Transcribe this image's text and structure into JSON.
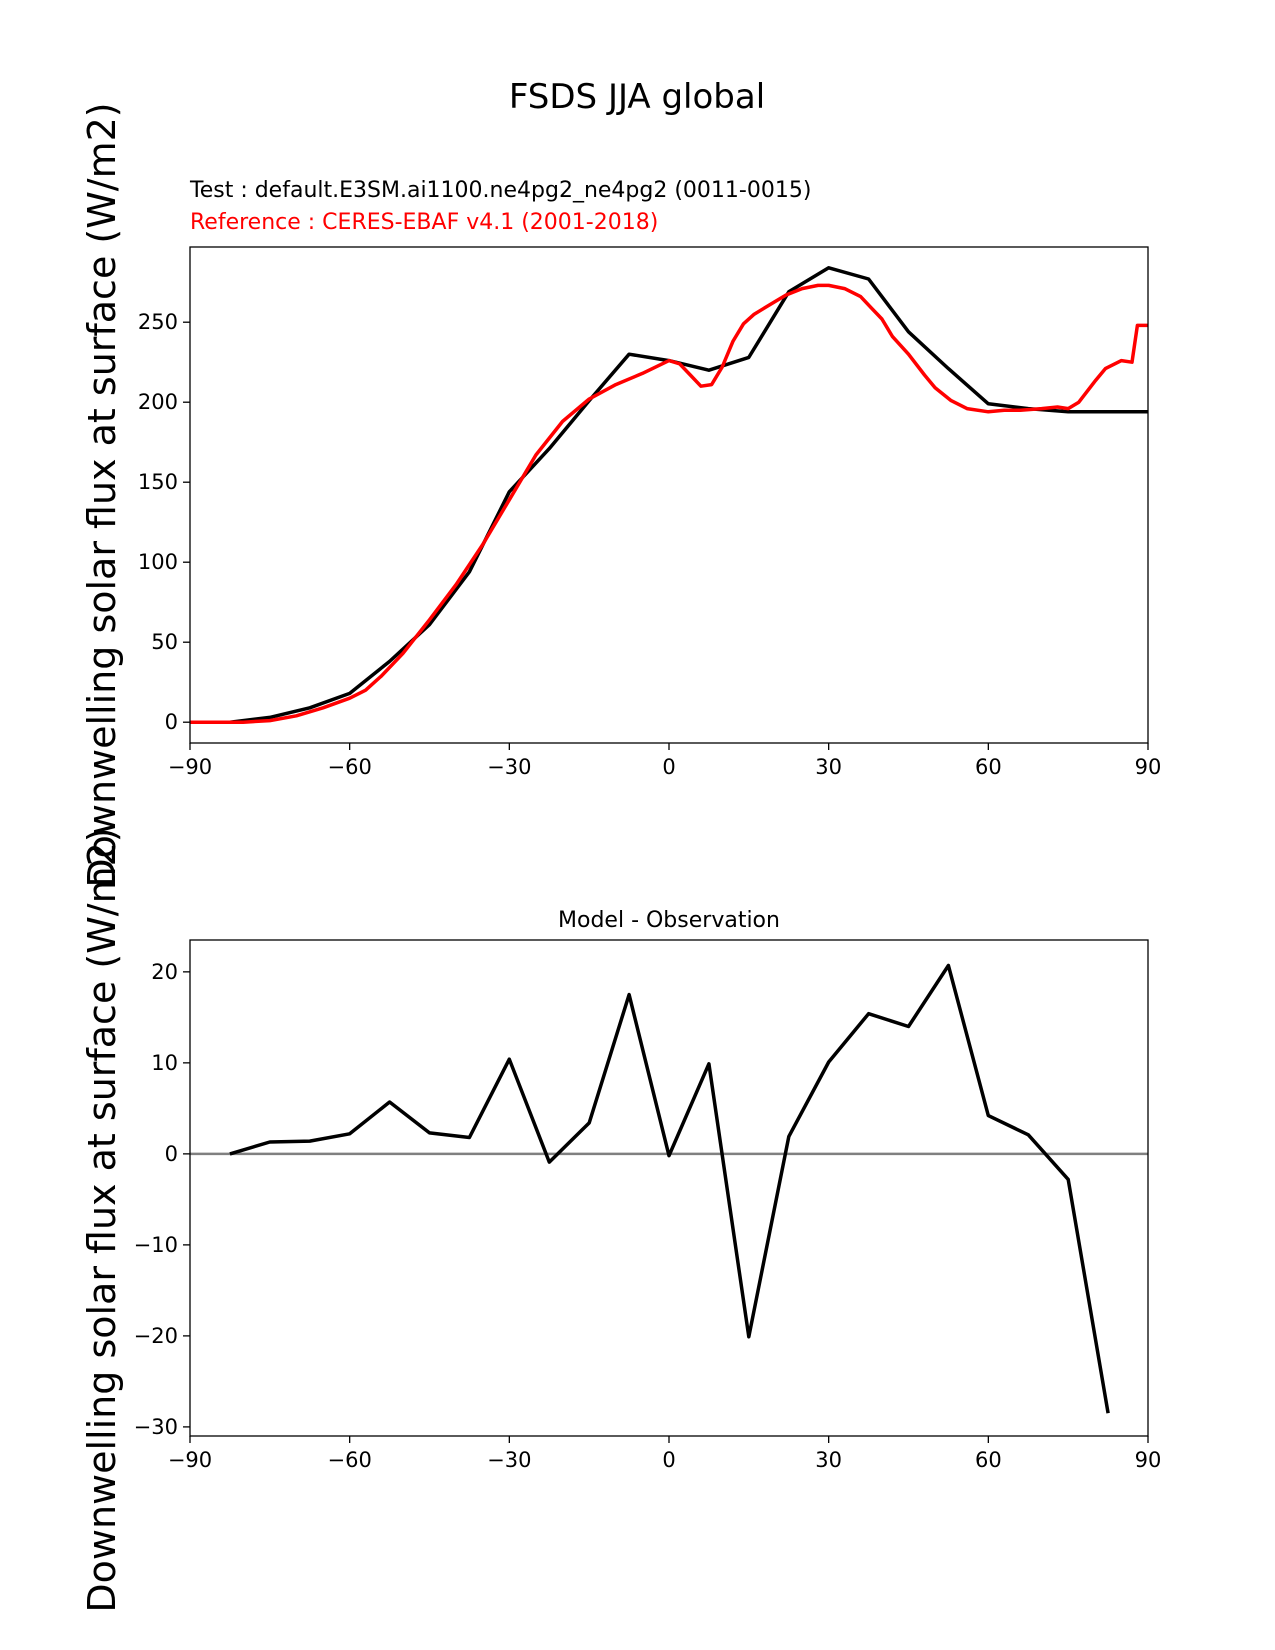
{
  "figure": {
    "title": "FSDS JJA global"
  },
  "colors": {
    "test": "#000000",
    "reference": "#ff0000",
    "zero_line": "#808080"
  },
  "chart_data": [
    {
      "type": "line",
      "name": "upper",
      "test_label": "Test : default.E3SM.ai1100.ne4pg2_ne4pg2 (0011-0015)",
      "reference_label": "Reference : CERES-EBAF v4.1 (2001-2018)",
      "ylabel": "Downwelling solar flux at surface (W/m2)",
      "xlim": [
        -90,
        90
      ],
      "ylim": [
        -13,
        297
      ],
      "xticks": [
        -90,
        -60,
        -30,
        0,
        30,
        60,
        90
      ],
      "yticks": [
        0,
        50,
        100,
        150,
        200,
        250
      ],
      "xtick_labels": [
        "−90",
        "−60",
        "−30",
        "0",
        "30",
        "60",
        "90"
      ],
      "ytick_labels": [
        "0",
        "50",
        "100",
        "150",
        "200",
        "250"
      ],
      "series": [
        {
          "role": "test",
          "x": [
            -90,
            -82.5,
            -75,
            -67.5,
            -60,
            -52.5,
            -45,
            -37.5,
            -30,
            -22.5,
            -15,
            -7.5,
            0,
            7.5,
            15,
            22.5,
            30,
            37.5,
            45,
            52.5,
            60,
            67.5,
            75,
            82.5,
            90
          ],
          "y": [
            0,
            0,
            3,
            9,
            18,
            38,
            61,
            94,
            144,
            171,
            201,
            230,
            226,
            220,
            228,
            269,
            284,
            277,
            244,
            221,
            199,
            196,
            194,
            194,
            194
          ]
        },
        {
          "role": "reference",
          "x": [
            -90,
            -85,
            -80,
            -75,
            -70,
            -65,
            -60,
            -57,
            -54,
            -50,
            -45,
            -40,
            -35,
            -30,
            -25,
            -20,
            -15,
            -10,
            -5,
            0,
            2,
            4,
            6,
            8,
            10,
            12,
            14,
            16,
            18,
            20,
            22,
            25,
            28,
            30,
            33,
            36,
            38,
            40,
            42,
            45,
            48,
            50,
            53,
            56,
            60,
            63,
            66,
            70,
            73,
            75,
            77,
            80,
            82,
            85,
            87,
            88,
            90
          ],
          "y": [
            0,
            0,
            0,
            1,
            4,
            9,
            15,
            20,
            29,
            43,
            64,
            86,
            111,
            139,
            167,
            188,
            202,
            211,
            218,
            226,
            224,
            217,
            210,
            211,
            222,
            238,
            249,
            255,
            259,
            263,
            267,
            271,
            273,
            273,
            271,
            266,
            259,
            252,
            241,
            230,
            217,
            209,
            201,
            196,
            194,
            195,
            195,
            196,
            197,
            196,
            200,
            213,
            221,
            226,
            225,
            248,
            248
          ]
        }
      ]
    },
    {
      "type": "line",
      "name": "lower",
      "title": "Model - Observation",
      "ylabel": "Downwelling solar flux at surface (W/m2)",
      "xlim": [
        -90,
        90
      ],
      "ylim": [
        -31,
        23.5
      ],
      "xticks": [
        -90,
        -60,
        -30,
        0,
        30,
        60,
        90
      ],
      "yticks": [
        -30,
        -20,
        -10,
        0,
        10,
        20
      ],
      "xtick_labels": [
        "−90",
        "−60",
        "−30",
        "0",
        "30",
        "60",
        "90"
      ],
      "ytick_labels": [
        "−30",
        "−20",
        "−10",
        "0",
        "10",
        "20"
      ],
      "zero_line": 0,
      "series": [
        {
          "role": "difference",
          "x": [
            -82.5,
            -75,
            -67.5,
            -60,
            -52.5,
            -45,
            -37.5,
            -30,
            -22.5,
            -15,
            -7.5,
            0,
            7.5,
            15,
            22.5,
            30,
            37.5,
            45,
            52.5,
            60,
            67.5,
            75,
            82.5
          ],
          "y": [
            0,
            1.3,
            1.4,
            2.2,
            5.7,
            2.3,
            1.8,
            10.4,
            -0.9,
            3.4,
            17.5,
            -0.2,
            9.9,
            -20.1,
            1.9,
            10.1,
            15.4,
            14,
            20.7,
            4.2,
            2.1,
            -2.8,
            -28.5
          ]
        }
      ]
    }
  ]
}
